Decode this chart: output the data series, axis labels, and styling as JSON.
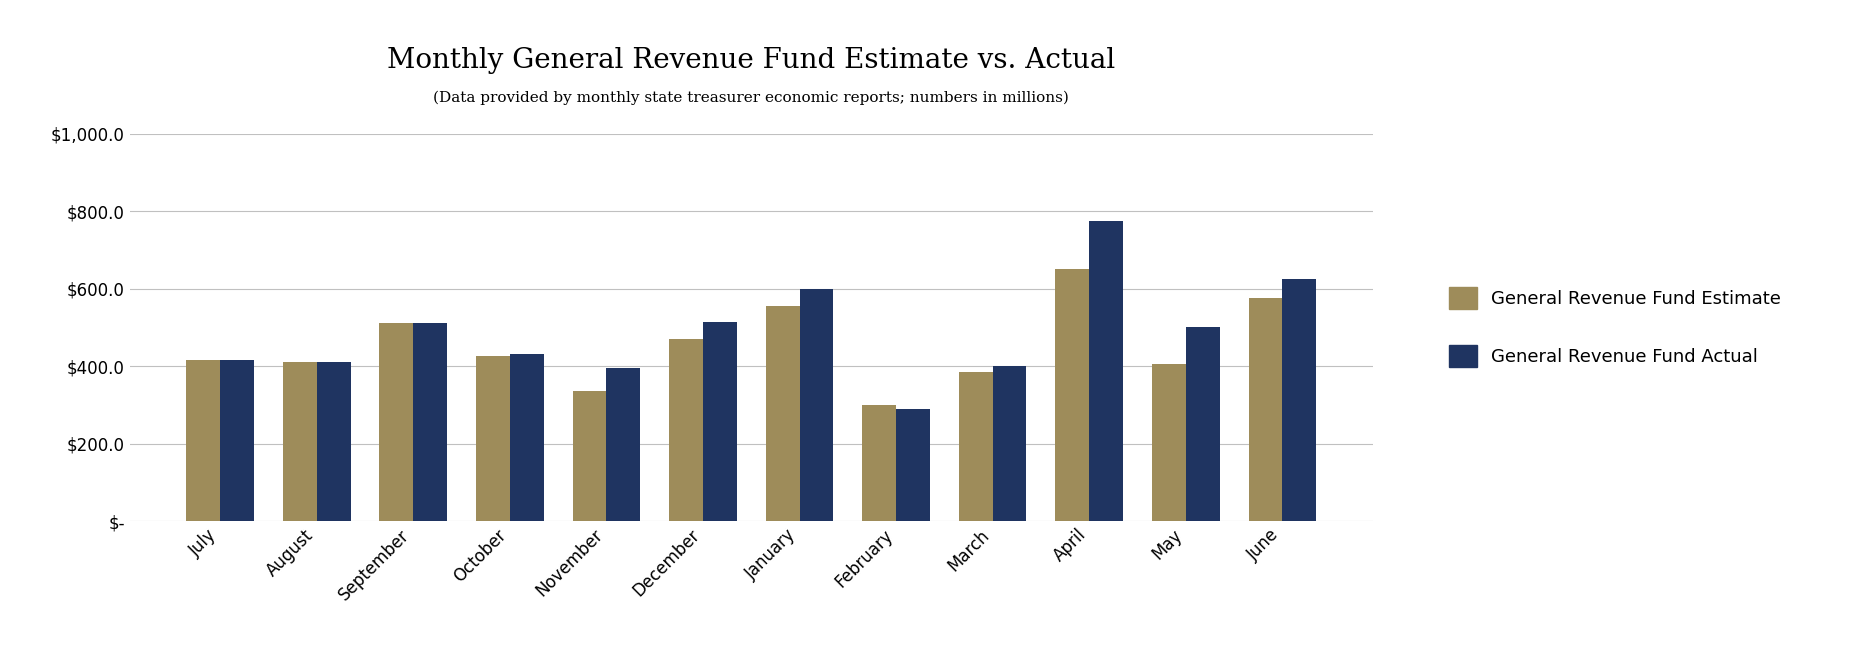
{
  "title": "Monthly General Revenue Fund Estimate vs. Actual",
  "subtitle": "(Data provided by monthly state treasurer economic reports; numbers in millions)",
  "months": [
    "July",
    "August",
    "September",
    "October",
    "November",
    "December",
    "January",
    "February",
    "March",
    "April",
    "May",
    "June"
  ],
  "estimate": [
    415,
    410,
    510,
    425,
    335,
    470,
    555,
    300,
    385,
    650,
    405,
    575
  ],
  "actual": [
    415,
    410,
    510,
    430,
    395,
    515,
    600,
    290,
    400,
    775,
    500,
    625
  ],
  "estimate_color": "#9e8c5a",
  "actual_color": "#1f3461",
  "bar_width": 0.35,
  "ylim": [
    0,
    1000
  ],
  "yticks": [
    0,
    200,
    400,
    600,
    800,
    1000
  ],
  "ytick_labels": [
    "$-",
    "$200.0",
    "$400.0",
    "$600.0",
    "$800.0",
    "$1,000.0"
  ],
  "legend_estimate": "General Revenue Fund Estimate",
  "legend_actual": "General Revenue Fund Actual",
  "background_color": "#ffffff",
  "grid_color": "#c0c0c0",
  "title_fontsize": 20,
  "subtitle_fontsize": 11,
  "tick_fontsize": 12,
  "legend_fontsize": 13
}
